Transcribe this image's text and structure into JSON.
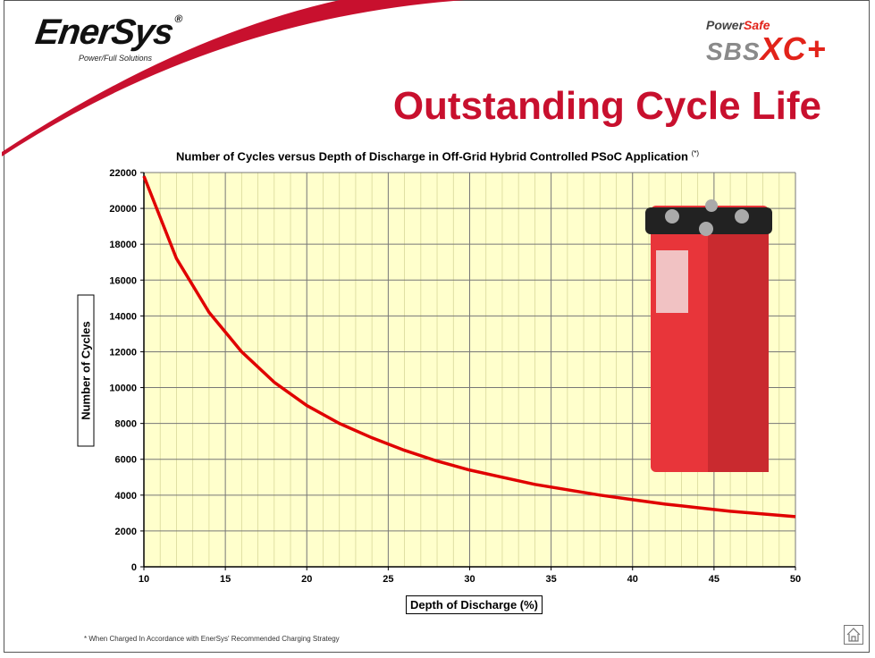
{
  "header": {
    "logo_text": "EnerSys",
    "logo_mark": "®",
    "tagline": "Power/Full Solutions",
    "brand_top_a": "Power",
    "brand_top_b": "Safe",
    "brand_main_a": "SBS",
    "brand_main_b": "XC+",
    "page_title": "Outstanding Cycle Life"
  },
  "footer": {
    "footnote": "* When Charged In Accordance with EnerSys' Recommended Charging Strategy",
    "home_icon": "home-icon"
  },
  "colors": {
    "accent_red": "#c8102e",
    "curve": "#e00000",
    "plot_bg": "#ffffcc",
    "battery_red": "#e8353a"
  },
  "chart_data": {
    "type": "line",
    "title": "Number of Cycles versus Depth of Discharge in Off-Grid Hybrid Controlled PSoC Application",
    "title_note": "(*)",
    "xlabel": "Depth of Discharge (%)",
    "ylabel": "Number of Cycles",
    "xlim": [
      10,
      50
    ],
    "ylim": [
      0,
      22000
    ],
    "x_ticks": [
      10,
      15,
      20,
      25,
      30,
      35,
      40,
      45,
      50
    ],
    "y_ticks": [
      0,
      2000,
      4000,
      6000,
      8000,
      10000,
      12000,
      14000,
      16000,
      18000,
      20000,
      22000
    ],
    "grid": true,
    "legend": "none",
    "series": [
      {
        "x": [
          10,
          12,
          14,
          16,
          18,
          20,
          22,
          24,
          26,
          28,
          30,
          32,
          34,
          36,
          38,
          40,
          42,
          44,
          46,
          48,
          50
        ],
        "values": [
          21800,
          17200,
          14200,
          12000,
          10300,
          9000,
          8000,
          7200,
          6500,
          5900,
          5400,
          5000,
          4600,
          4300,
          4000,
          3750,
          3500,
          3300,
          3100,
          2950,
          2800
        ]
      }
    ]
  }
}
